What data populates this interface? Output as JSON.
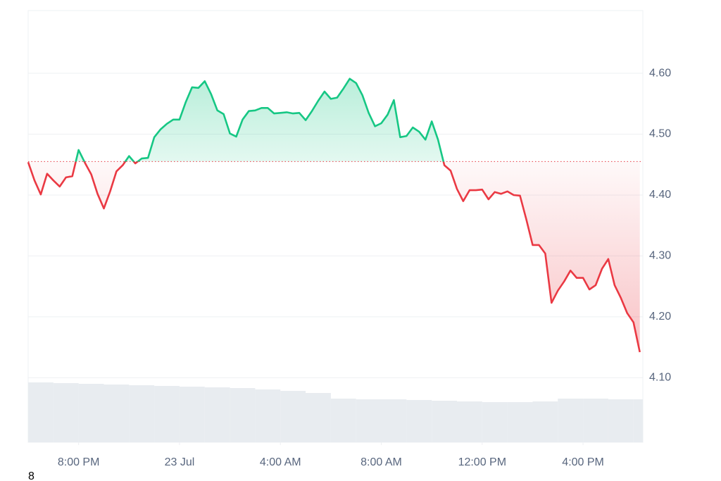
{
  "chart_data": {
    "type": "line",
    "x": [
      18,
      18.25,
      18.5,
      18.75,
      19,
      19.25,
      19.5,
      19.75,
      20,
      20.25,
      20.5,
      20.75,
      21,
      21.25,
      21.5,
      21.75,
      22,
      22.25,
      22.5,
      22.75,
      23,
      23.25,
      23.5,
      23.75,
      24,
      24.25,
      24.5,
      24.75,
      25,
      25.25,
      25.5,
      25.75,
      26,
      26.25,
      26.5,
      26.75,
      27,
      27.25,
      27.5,
      27.75,
      28,
      28.25,
      28.5,
      28.75,
      29,
      29.25,
      29.5,
      29.75,
      30,
      30.25,
      30.5,
      30.75,
      31,
      31.25,
      31.5,
      31.75,
      32,
      32.25,
      32.5,
      32.75,
      33,
      33.25,
      33.5,
      33.75,
      34,
      34.25,
      34.5,
      34.75,
      35,
      35.25,
      35.5,
      35.75,
      36,
      36.25,
      36.5,
      36.75,
      37,
      37.25,
      37.5,
      37.75,
      38,
      38.25,
      38.5,
      38.75,
      39,
      39.25,
      39.5,
      39.75,
      40,
      40.25,
      40.5,
      40.75,
      41,
      41.25,
      41.5,
      41.75,
      42,
      42.25
    ],
    "values": [
      4.454,
      4.424,
      4.401,
      4.435,
      4.424,
      4.414,
      4.429,
      4.431,
      4.474,
      4.453,
      4.434,
      4.402,
      4.378,
      4.406,
      4.439,
      4.449,
      4.464,
      4.452,
      4.46,
      4.461,
      4.495,
      4.508,
      4.517,
      4.524,
      4.524,
      4.553,
      4.577,
      4.576,
      4.587,
      4.566,
      4.539,
      4.533,
      4.501,
      4.496,
      4.524,
      4.538,
      4.539,
      4.543,
      4.543,
      4.534,
      4.535,
      4.536,
      4.534,
      4.535,
      4.523,
      4.538,
      4.555,
      4.57,
      4.558,
      4.56,
      4.575,
      4.591,
      4.584,
      4.564,
      4.535,
      4.513,
      4.518,
      4.532,
      4.556,
      4.495,
      4.497,
      4.511,
      4.504,
      4.491,
      4.521,
      4.491,
      4.449,
      4.44,
      4.41,
      4.39,
      4.408,
      4.408,
      4.409,
      4.393,
      4.405,
      4.402,
      4.406,
      4.4,
      4.399,
      4.36,
      4.318,
      4.318,
      4.304,
      4.223,
      4.243,
      4.258,
      4.276,
      4.264,
      4.264,
      4.245,
      4.252,
      4.279,
      4.295,
      4.252,
      4.231,
      4.206,
      4.191,
      4.142
    ],
    "baseline": 4.455,
    "up_color": "#16c784",
    "down_color": "#ea3943",
    "volume": {
      "x": [
        18,
        19,
        20,
        21,
        22,
        23,
        24,
        25,
        26,
        27,
        28,
        29,
        30,
        31,
        32,
        33,
        34,
        35,
        36,
        37,
        38,
        39,
        40,
        41,
        42
      ],
      "values": [
        85,
        84,
        83,
        82,
        81,
        80,
        79,
        78,
        77,
        75,
        73,
        70,
        62,
        61,
        61,
        60,
        59,
        58,
        57,
        57,
        58,
        62,
        62,
        61,
        61
      ],
      "vlim": [
        0,
        100
      ],
      "color": "#e8ecf0"
    },
    "xlim": [
      18,
      42.37
    ],
    "xticks": [
      {
        "value": 20,
        "label": "8:00 PM"
      },
      {
        "value": 24,
        "label": "23 Jul"
      },
      {
        "value": 28,
        "label": "4:00 AM"
      },
      {
        "value": 32,
        "label": "8:00 AM"
      },
      {
        "value": 36,
        "label": "12:00 PM"
      },
      {
        "value": 40,
        "label": "4:00 PM"
      }
    ],
    "ylim": [
      3.994,
      4.703
    ],
    "yticks": [
      {
        "value": 4.1,
        "label": "4.10"
      },
      {
        "value": 4.2,
        "label": "4.20"
      },
      {
        "value": 4.3,
        "label": "4.30"
      },
      {
        "value": 4.4,
        "label": "4.40"
      },
      {
        "value": 4.5,
        "label": "4.50"
      },
      {
        "value": 4.6,
        "label": "4.60"
      }
    ],
    "grid": true,
    "footnote": "8"
  }
}
